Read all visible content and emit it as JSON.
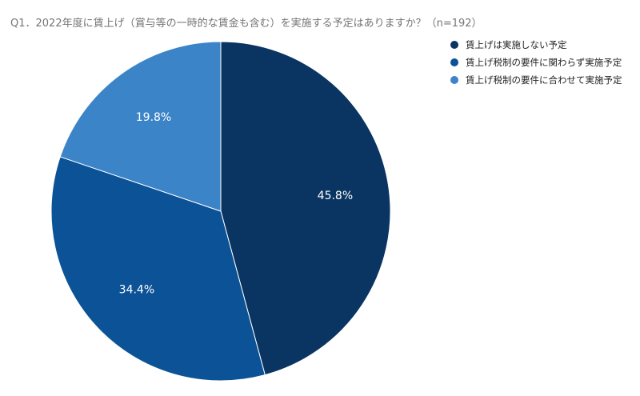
{
  "chart_data": {
    "type": "pie",
    "title": "Q1．2022年度に賃上げ（賞与等の一時的な賃金も含む）を実施する予定はありますか？（n=192）",
    "slices": [
      {
        "label": "賃上げは実施しない予定",
        "value": 45.8,
        "display": "45.8%",
        "color": "#0a3461"
      },
      {
        "label": "賃上げ税制の要件に関わらず実施予定",
        "value": 34.4,
        "display": "34.4%",
        "color": "#0c5296"
      },
      {
        "label": "賃上げ税制の要件に合わせて実施予定",
        "value": 19.8,
        "display": "19.8%",
        "color": "#3c84c8"
      }
    ],
    "legend_position": "top-right"
  }
}
